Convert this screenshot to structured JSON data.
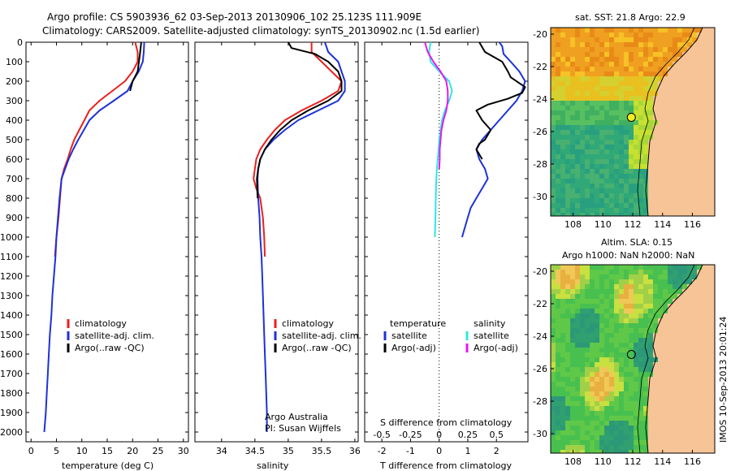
{
  "header": {
    "line1": "Argo profile: CS 5903936_62 03-Sep-2013 20130906_102 25.123S 111.909E",
    "line2": "Climatology: CARS2009. Satellite-adjusted climatology: synTS_20130902.nc (1.5d earlier)"
  },
  "colors": {
    "climatology": "#e8211f",
    "satellite": "#1c32d8",
    "argo": "#000000",
    "salinity_satellite": "#2ee6e6",
    "salinity_argo": "#e619e6",
    "land": "#f6c496"
  },
  "chart_data": [
    {
      "type": "line",
      "xlabel": "temperature (deg C)",
      "ylabel": "",
      "xlim": [
        -1,
        31
      ],
      "ylim": [
        2050,
        0
      ],
      "xticks": [
        "0",
        "5",
        "10",
        "15",
        "20",
        "25",
        "30"
      ],
      "yticks": [
        "0",
        "100",
        "200",
        "300",
        "400",
        "500",
        "600",
        "700",
        "800",
        "900",
        "1000",
        "1100",
        "1200",
        "1300",
        "1400",
        "1500",
        "1600",
        "1700",
        "1800",
        "1900",
        "2000"
      ],
      "legend": [
        "climatology",
        "satellite-adj. clim.",
        "Argo(..raw -QC)"
      ],
      "legend_position": "lower-center",
      "series": [
        {
          "name": "climatology",
          "color": "#e8211f",
          "points": [
            [
              20.5,
              0
            ],
            [
              21,
              50
            ],
            [
              21,
              100
            ],
            [
              20,
              150
            ],
            [
              18.5,
              200
            ],
            [
              16,
              250
            ],
            [
              13.5,
              300
            ],
            [
              11.5,
              350
            ],
            [
              10.5,
              400
            ],
            [
              9.5,
              450
            ],
            [
              8.5,
              500
            ],
            [
              7.8,
              550
            ],
            [
              7.2,
              600
            ],
            [
              6.5,
              650
            ],
            [
              6,
              700
            ],
            [
              5.7,
              800
            ],
            [
              5.4,
              900
            ],
            [
              5,
              1000
            ],
            [
              4.7,
              1100
            ]
          ]
        },
        {
          "name": "satellite-adj. clim.",
          "color": "#1c32d8",
          "points": [
            [
              22.3,
              0
            ],
            [
              22.2,
              50
            ],
            [
              22,
              100
            ],
            [
              21.2,
              150
            ],
            [
              20,
              200
            ],
            [
              19,
              250
            ],
            [
              16.3,
              300
            ],
            [
              13.5,
              350
            ],
            [
              11.5,
              400
            ],
            [
              10.4,
              450
            ],
            [
              9.3,
              500
            ],
            [
              8.3,
              550
            ],
            [
              7.4,
              600
            ],
            [
              6.7,
              650
            ],
            [
              6,
              700
            ],
            [
              5.6,
              800
            ],
            [
              5.3,
              900
            ],
            [
              5,
              1000
            ],
            [
              4.8,
              1100
            ],
            [
              4.5,
              1200
            ],
            [
              4.2,
              1300
            ],
            [
              4,
              1400
            ],
            [
              3.7,
              1500
            ],
            [
              3.5,
              1600
            ],
            [
              3.3,
              1700
            ],
            [
              3.1,
              1800
            ],
            [
              2.9,
              1900
            ],
            [
              2.6,
              2000
            ]
          ]
        },
        {
          "name": "Argo(..raw -QC)",
          "color": "#000000",
          "points": [
            [
              21.7,
              0
            ],
            [
              21.5,
              50
            ],
            [
              21,
              150
            ],
            [
              20,
              200
            ],
            [
              19.5,
              250
            ]
          ]
        }
      ]
    },
    {
      "type": "line",
      "xlabel": "salinity",
      "ylabel": "",
      "xlim": [
        33.6,
        36.05
      ],
      "ylim": [
        2050,
        0
      ],
      "xticks": [
        "34",
        "34.5",
        "35",
        "35.5",
        "36"
      ],
      "legend": [
        "climatology",
        "satellite-adj. clim.",
        "Argo(..raw -QC)"
      ],
      "legend_position": "lower-center",
      "annotation": [
        "Argo Australia",
        "PI: Susan Wijffels"
      ],
      "series": [
        {
          "name": "climatology",
          "color": "#e8211f",
          "points": [
            [
              35.35,
              0
            ],
            [
              35.35,
              50
            ],
            [
              35.5,
              100
            ],
            [
              35.65,
              150
            ],
            [
              35.8,
              200
            ],
            [
              35.75,
              250
            ],
            [
              35.5,
              300
            ],
            [
              35.2,
              350
            ],
            [
              34.95,
              400
            ],
            [
              34.8,
              450
            ],
            [
              34.68,
              500
            ],
            [
              34.58,
              550
            ],
            [
              34.52,
              600
            ],
            [
              34.5,
              650
            ],
            [
              34.48,
              700
            ],
            [
              34.52,
              750
            ],
            [
              34.58,
              800
            ],
            [
              34.62,
              900
            ],
            [
              34.64,
              1000
            ],
            [
              34.65,
              1100
            ]
          ]
        },
        {
          "name": "satellite-adj. clim.",
          "color": "#1c32d8",
          "points": [
            [
              35.55,
              0
            ],
            [
              35.6,
              50
            ],
            [
              35.75,
              100
            ],
            [
              35.85,
              200
            ],
            [
              35.85,
              250
            ],
            [
              35.75,
              300
            ],
            [
              35.45,
              350
            ],
            [
              35.15,
              400
            ],
            [
              34.95,
              450
            ],
            [
              34.78,
              500
            ],
            [
              34.65,
              550
            ],
            [
              34.58,
              600
            ],
            [
              34.55,
              650
            ],
            [
              34.54,
              700
            ],
            [
              34.55,
              800
            ],
            [
              34.57,
              900
            ],
            [
              34.58,
              1000
            ],
            [
              34.6,
              1100
            ],
            [
              34.61,
              1200
            ],
            [
              34.62,
              1300
            ],
            [
              34.63,
              1400
            ],
            [
              34.64,
              1500
            ],
            [
              34.65,
              1600
            ],
            [
              34.66,
              1700
            ],
            [
              34.67,
              1800
            ],
            [
              34.68,
              1900
            ],
            [
              34.68,
              2000
            ]
          ]
        },
        {
          "name": "Argo(..raw -QC)",
          "color": "#000000",
          "points": [
            [
              35.0,
              0
            ],
            [
              35.05,
              30
            ],
            [
              35.4,
              60
            ],
            [
              35.6,
              100
            ],
            [
              35.75,
              150
            ],
            [
              35.8,
              200
            ],
            [
              35.8,
              250
            ],
            [
              35.6,
              300
            ],
            [
              35.3,
              350
            ],
            [
              35.05,
              400
            ],
            [
              34.88,
              450
            ],
            [
              34.75,
              500
            ],
            [
              34.65,
              550
            ],
            [
              34.58,
              600
            ],
            [
              34.55,
              650
            ],
            [
              34.53,
              700
            ],
            [
              34.54,
              800
            ]
          ]
        }
      ]
    },
    {
      "type": "line",
      "xlabel": "T difference from climatology",
      "title": "S difference from climatology",
      "ylabel": "",
      "xlim": [
        -2.6,
        3.1
      ],
      "ylim": [
        2050,
        0
      ],
      "xticks": [
        "-2",
        "-1",
        "0",
        "1",
        "2"
      ],
      "xticks_top": [
        "-0.5",
        "-0.25",
        "0",
        "0.25",
        "0.5"
      ],
      "zero_line": "dotted",
      "legend": [
        "temperature",
        "satellite",
        "Argo(-adj)",
        "salinity",
        "satellite",
        "Argo(-adj)"
      ],
      "legend_position": "lower-center",
      "series": [
        {
          "name": "satellite",
          "color": "#1c32d8",
          "points": [
            [
              2.1,
              0
            ],
            [
              2.2,
              20
            ],
            [
              2.25,
              60
            ],
            [
              2.5,
              100
            ],
            [
              2.8,
              150
            ],
            [
              3.0,
              200
            ],
            [
              2.9,
              250
            ],
            [
              2.7,
              300
            ],
            [
              2.4,
              350
            ],
            [
              2.1,
              400
            ],
            [
              1.8,
              450
            ],
            [
              1.5,
              500
            ],
            [
              1.3,
              550
            ],
            [
              1.4,
              600
            ],
            [
              1.6,
              650
            ],
            [
              1.7,
              700
            ],
            [
              1.5,
              750
            ],
            [
              1.3,
              800
            ],
            [
              1.1,
              850
            ],
            [
              1.0,
              900
            ],
            [
              0.9,
              950
            ],
            [
              0.8,
              1000
            ]
          ]
        },
        {
          "name": "Argo(-adj)",
          "color": "#000000",
          "points": [
            [
              1.4,
              0
            ],
            [
              1.6,
              50
            ],
            [
              2.2,
              100
            ],
            [
              2.4,
              150
            ],
            [
              2.5,
              180
            ],
            [
              3.0,
              230
            ],
            [
              2.9,
              260
            ],
            [
              2.4,
              290
            ],
            [
              1.7,
              320
            ],
            [
              1.3,
              350
            ],
            [
              1.5,
              400
            ],
            [
              1.8,
              450
            ],
            [
              1.6,
              500
            ],
            [
              1.4,
              520
            ],
            [
              1.3,
              550
            ],
            [
              1.5,
              600
            ]
          ]
        },
        {
          "name": "satellite",
          "color": "#2ee6e6",
          "points": [
            [
              -0.3,
              0
            ],
            [
              -0.35,
              50
            ],
            [
              -0.3,
              100
            ],
            [
              0.0,
              150
            ],
            [
              0.35,
              200
            ],
            [
              0.45,
              250
            ],
            [
              0.35,
              300
            ],
            [
              0.2,
              350
            ],
            [
              0.1,
              400
            ],
            [
              0.05,
              450
            ],
            [
              0.0,
              500
            ],
            [
              -0.02,
              550
            ],
            [
              -0.05,
              600
            ],
            [
              -0.08,
              650
            ],
            [
              -0.1,
              700
            ],
            [
              -0.12,
              800
            ],
            [
              -0.13,
              900
            ],
            [
              -0.15,
              1000
            ]
          ]
        },
        {
          "name": "Argo(-adj)",
          "color": "#e619e6",
          "points": [
            [
              -0.5,
              0
            ],
            [
              -0.4,
              50
            ],
            [
              -0.2,
              100
            ],
            [
              0.05,
              150
            ],
            [
              0.25,
              200
            ],
            [
              0.3,
              250
            ],
            [
              0.3,
              300
            ],
            [
              0.25,
              350
            ],
            [
              0.15,
              400
            ],
            [
              0.08,
              450
            ],
            [
              0.05,
              500
            ],
            [
              0.02,
              550
            ],
            [
              0.02,
              600
            ],
            [
              0.0,
              650
            ]
          ]
        }
      ]
    },
    {
      "type": "heatmap",
      "title": "sat. SST: 21.8 Argo: 22.9",
      "xticks": [
        "108",
        "110",
        "112",
        "114",
        "116"
      ],
      "yticks": [
        "-20",
        "-22",
        "-24",
        "-26",
        "-28",
        "-30"
      ],
      "xlim": [
        106.5,
        117.5
      ],
      "ylim": [
        -31.2,
        -19.6
      ],
      "marker": [
        111.909,
        -25.123
      ]
    },
    {
      "type": "heatmap",
      "title": "Altim. SLA: 0.15",
      "subtitle": "Argo h1000: NaN h2000: NaN",
      "xticks": [
        "108",
        "110",
        "112",
        "114",
        "116"
      ],
      "yticks": [
        "-20",
        "-22",
        "-24",
        "-26",
        "-28",
        "-30"
      ],
      "xlim": [
        106.5,
        117.5
      ],
      "ylim": [
        -31.2,
        -19.6
      ],
      "marker": [
        111.909,
        -25.123
      ]
    }
  ],
  "sidebar_stamp": "IMOS 10-Sep-2013 20:01:24"
}
